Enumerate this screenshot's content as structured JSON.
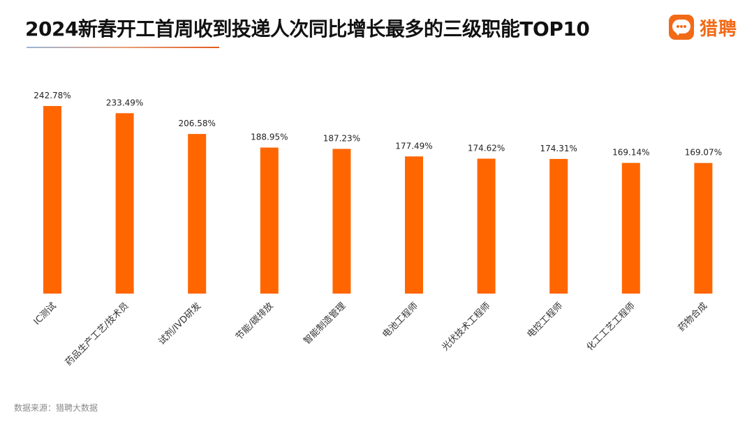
{
  "header": {
    "title": "2024新春开工首周收到投递人次同比增长最多的三级职能TOP10",
    "logo_text": "猎聘"
  },
  "footer": {
    "source": "数据来源：猎聘大数据"
  },
  "colors": {
    "bar": "#ff6600",
    "accent": "#f26a16"
  },
  "chart_data": {
    "type": "bar",
    "title": "2024新春开工首周收到投递人次同比增长最多的三级职能TOP10",
    "categories": [
      "IC测试",
      "药品生产工艺/技术员",
      "试剂/IVD研发",
      "节能/碳排放",
      "智能制造管理",
      "电池工程师",
      "光伏技术工程师",
      "电控工程师",
      "化工工艺工程师",
      "药物合成"
    ],
    "values": [
      242.78,
      233.49,
      206.58,
      188.95,
      187.23,
      177.49,
      174.62,
      174.31,
      169.14,
      169.07
    ],
    "value_labels": [
      "242.78%",
      "233.49%",
      "206.58%",
      "188.95%",
      "187.23%",
      "177.49%",
      "174.62%",
      "174.31%",
      "169.14%",
      "169.07%"
    ],
    "unit": "%",
    "xlabel": "",
    "ylabel": "",
    "ylim": [
      0,
      250
    ],
    "grid": false,
    "legend": "none"
  }
}
